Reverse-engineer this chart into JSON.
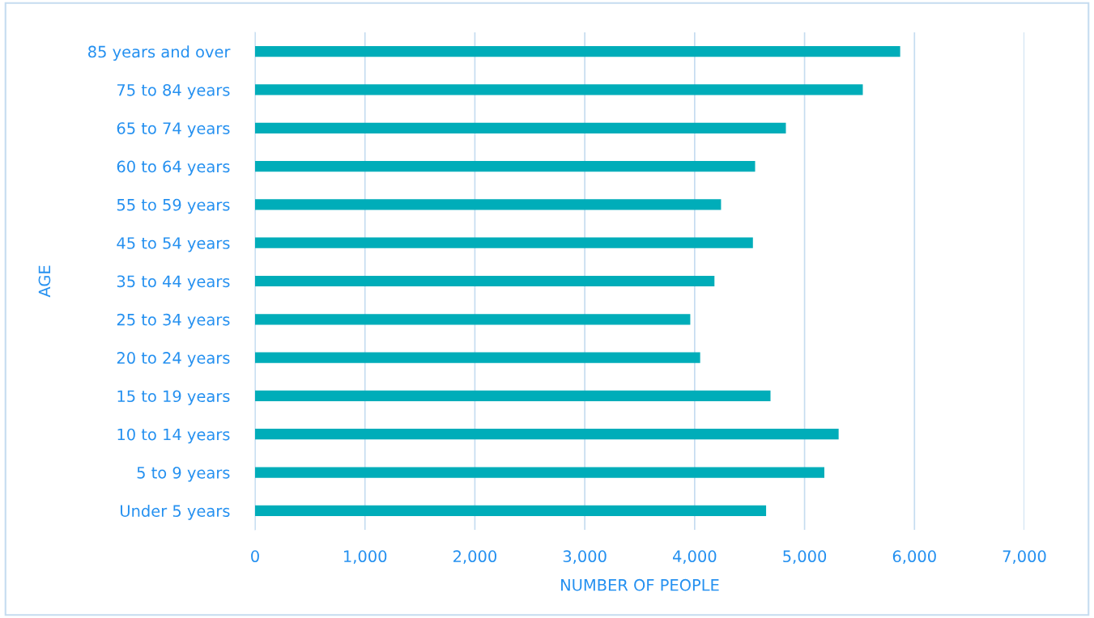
{
  "chart_data": {
    "type": "bar",
    "orientation": "horizontal",
    "xlabel": "NUMBER OF PEOPLE",
    "ylabel": "AGE",
    "categories": [
      "85 years and over",
      "75 to 84 years",
      "65 to 74 years",
      "60 to 64 years",
      "55 to 59 years",
      "45 to 54 years",
      "35 to 44 years",
      "25 to 34 years",
      "20 to 24 years",
      "15 to 19 years",
      "10 to 14 years",
      "5 to 9 years",
      "Under 5 years"
    ],
    "values": [
      5870,
      5530,
      4830,
      4550,
      4240,
      4530,
      4180,
      3960,
      4050,
      4690,
      5310,
      5180,
      4650
    ],
    "color": "#00adb9",
    "xlim": [
      0,
      7000
    ],
    "xticks": [
      {
        "value": 0,
        "label": "0"
      },
      {
        "value": 1000,
        "label": "1,000"
      },
      {
        "value": 2000,
        "label": "2,000"
      },
      {
        "value": 3000,
        "label": "3,000"
      },
      {
        "value": 4000,
        "label": "4,000"
      },
      {
        "value": 5000,
        "label": "5,000"
      },
      {
        "value": 6000,
        "label": "6,000"
      },
      {
        "value": 7000,
        "label": "7,000"
      }
    ],
    "grid": "x"
  }
}
